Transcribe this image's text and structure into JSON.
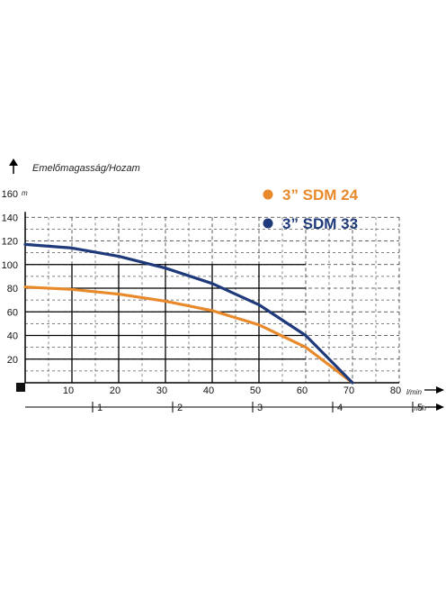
{
  "chart_data": {
    "type": "line",
    "ylabel": "Emelőmagasság/Hozam",
    "y_unit": "m",
    "x_unit": "l/min",
    "x2_unit": "m³/h",
    "xlim": [
      0,
      80
    ],
    "ylim": [
      0,
      160
    ],
    "x_ticks": [
      10,
      20,
      30,
      40,
      50,
      60,
      70,
      80
    ],
    "y_ticks": [
      20,
      40,
      60,
      80,
      100,
      120,
      140,
      160
    ],
    "x2_ticks": [
      1,
      2,
      3,
      4,
      5
    ],
    "grid": true,
    "legend_position": "top-right",
    "series": [
      {
        "name": "3” SDM 24",
        "color": "#e8892b",
        "x": [
          0,
          10,
          20,
          30,
          40,
          50,
          60,
          70
        ],
        "y": [
          81,
          79,
          75,
          69,
          61,
          49,
          30,
          0
        ]
      },
      {
        "name": "3” SDM 33",
        "color": "#1f3a7a",
        "x": [
          0,
          10,
          20,
          30,
          40,
          50,
          60,
          70
        ],
        "y": [
          117,
          114,
          107,
          97,
          84,
          66,
          40,
          0
        ]
      }
    ]
  }
}
